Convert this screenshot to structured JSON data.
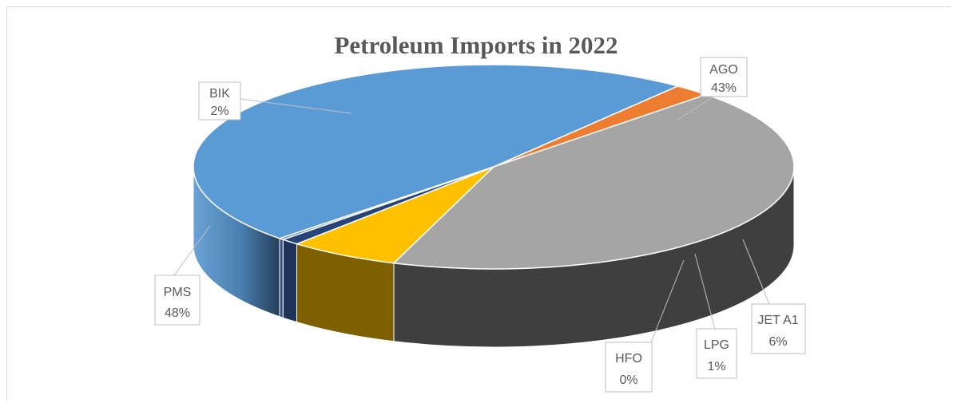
{
  "chart_data": {
    "type": "pie",
    "style": "3d-pie",
    "title": "Petroleum Imports in 2022",
    "slices": [
      {
        "label": "AGO",
        "value": 43,
        "percent_label": "43%",
        "color": "#a5a5a5"
      },
      {
        "label": "JET A1",
        "value": 6,
        "percent_label": "6%",
        "color": "#ffc000"
      },
      {
        "label": "LPG",
        "value": 1,
        "percent_label": "1%",
        "color": "#264478"
      },
      {
        "label": "HFO",
        "value": 0,
        "percent_label": "0%",
        "color": "#4472c4"
      },
      {
        "label": "PMS",
        "value": 48,
        "percent_label": "48%",
        "color": "#5b9bd5"
      },
      {
        "label": "BIK",
        "value": 2,
        "percent_label": "2%",
        "color": "#ed7d31"
      }
    ],
    "legend": "none"
  }
}
